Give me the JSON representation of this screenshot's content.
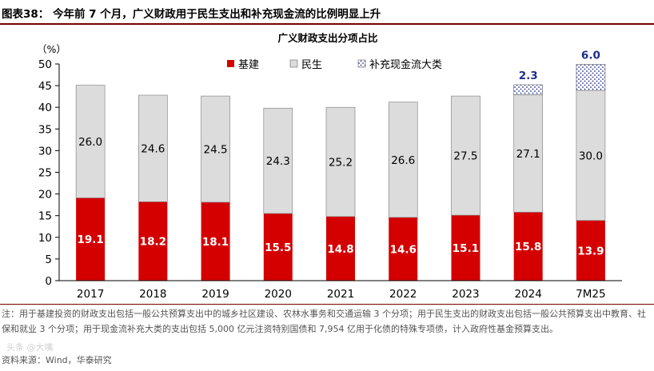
{
  "figure": {
    "title": "图表38： 今年前 7 个月，广义财政用于民生支出和补充现金流的比例明显上升",
    "note": "注：用于基建投资的财政支出包括一般公共预算支出中的城乡社区建设、农林水事务和交通运输 3 个分项；用于民生支出的财政支出包括一般公共预算支出中教育、社保和就业 3 个分项；用于现金流补充大类的支出包括 5,000 亿元注资特别国债和 7,954 亿用于化债的特殊专项债，计入政府性基金预算支出。",
    "source": "资料来源：Wind，华泰研究",
    "watermark": "头条 @大嘴"
  },
  "colors": {
    "infra": "#d40000",
    "livelihood": "#dcdcdc",
    "cash": "#1f2d8c",
    "rule": "#7a0000"
  },
  "chart_data": {
    "type": "bar",
    "stacked": true,
    "title": "广义财政支出分项占比",
    "ylabel": "（%）",
    "ylim": [
      0,
      50
    ],
    "yticks": [
      0,
      5,
      10,
      15,
      20,
      25,
      30,
      35,
      40,
      45,
      50
    ],
    "categories": [
      "2017",
      "2018",
      "2019",
      "2020",
      "2021",
      "2022",
      "2023",
      "2024",
      "7M25"
    ],
    "series": [
      {
        "name": "基建",
        "key": "infra",
        "values": [
          19.1,
          18.2,
          18.1,
          15.5,
          14.8,
          14.6,
          15.1,
          15.8,
          13.9
        ],
        "labels": [
          "19.1",
          "18.2",
          "18.1",
          "15.5",
          "14.8",
          "14.6",
          "15.1",
          "15.8",
          "13.9"
        ]
      },
      {
        "name": "民生",
        "key": "livelihood",
        "values": [
          26.0,
          24.6,
          24.5,
          24.3,
          25.2,
          26.6,
          27.5,
          27.1,
          30.0
        ],
        "labels": [
          "26.0",
          "24.6",
          "24.5",
          "24.3",
          "25.2",
          "26.6",
          "27.5",
          "27.1",
          "30.0"
        ]
      },
      {
        "name": "补充现金流大类",
        "key": "cash",
        "values": [
          0,
          0,
          0,
          0,
          0,
          0,
          0,
          2.3,
          6.0
        ],
        "labels": [
          "",
          "",
          "",
          "",
          "",
          "",
          "",
          "2.3",
          "6.0"
        ]
      }
    ],
    "legend_position": "top"
  }
}
